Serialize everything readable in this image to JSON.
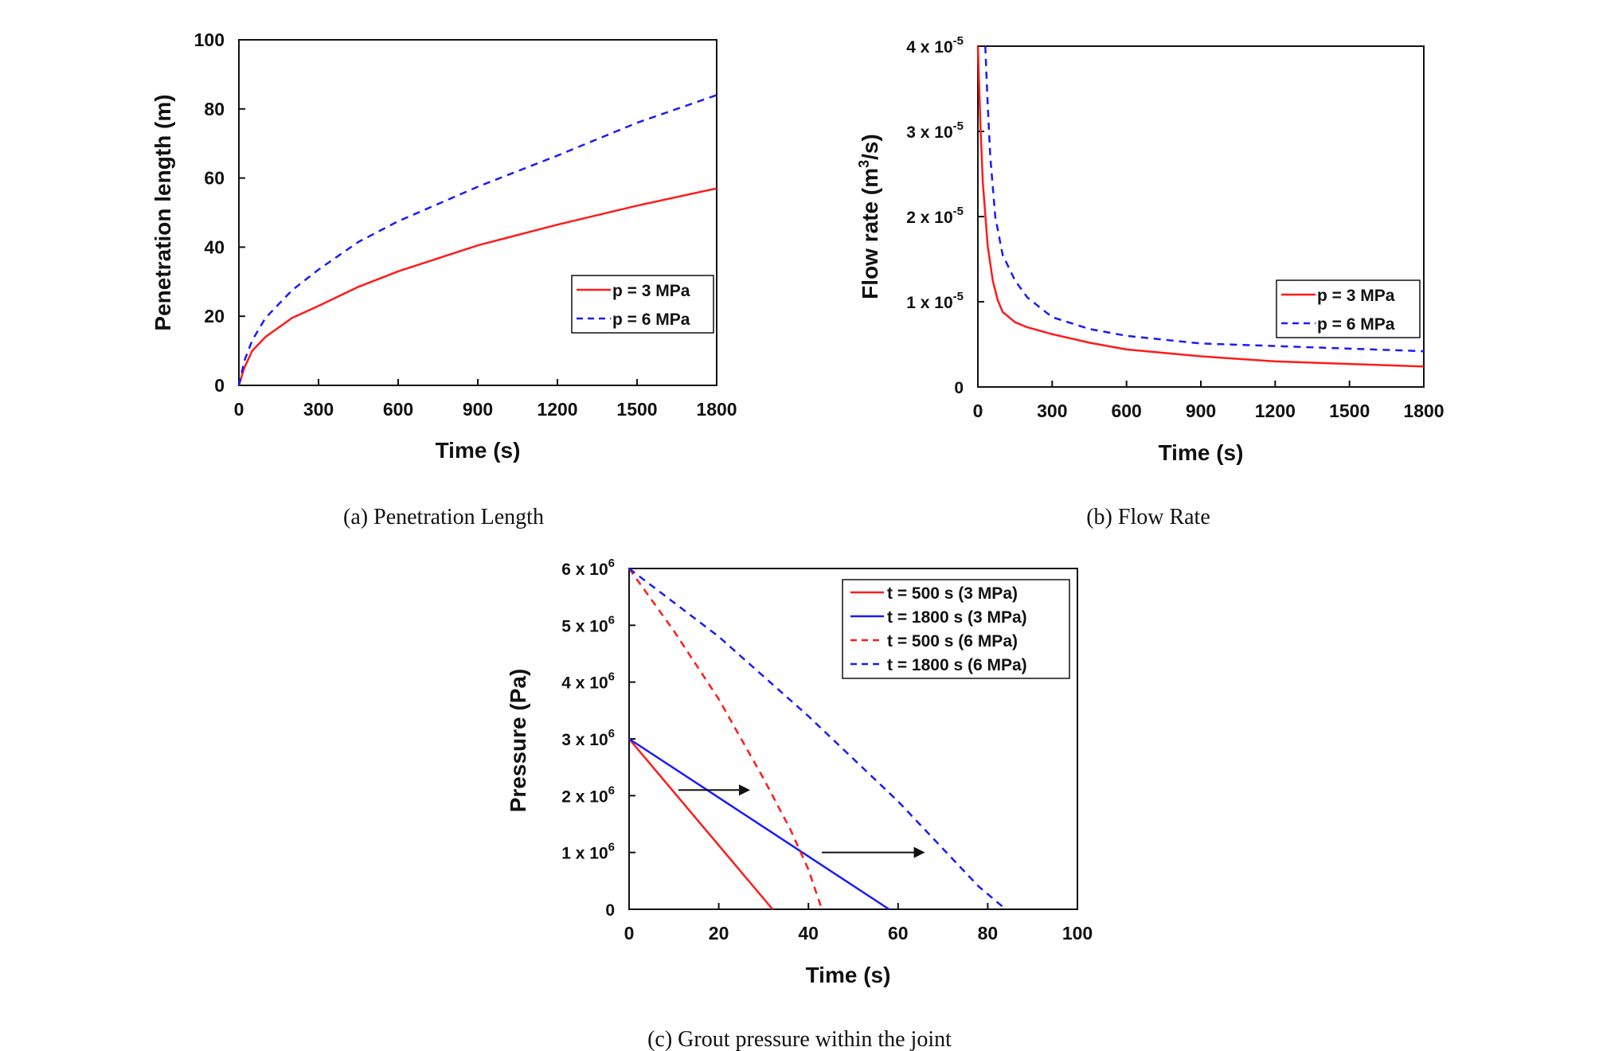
{
  "colors": {
    "red": "#ff1a1a",
    "blue": "#1a1aff",
    "axis": "#111111"
  },
  "chart_data": [
    {
      "id": "a",
      "type": "line",
      "caption": "(a)  Penetration  Length",
      "xlabel": "Time (s)",
      "ylabel": "Penetration length (m)",
      "xlim": [
        0,
        1800
      ],
      "ylim": [
        0,
        100
      ],
      "xticks": [
        0,
        300,
        600,
        900,
        1200,
        1500,
        1800
      ],
      "yticks": [
        0,
        20,
        40,
        60,
        80,
        100
      ],
      "xtick_labels": [
        "0",
        "300",
        "600",
        "900",
        "1200",
        "1500",
        "1800"
      ],
      "ytick_labels": [
        "0",
        "20",
        "40",
        "60",
        "80",
        "100"
      ],
      "legend": [
        "p = 3 MPa",
        "p = 6 MPa"
      ],
      "series": [
        {
          "name": "p = 3 MPa",
          "style": "solid",
          "color": "red",
          "x": [
            0,
            20,
            50,
            100,
            200,
            300,
            450,
            600,
            900,
            1200,
            1500,
            1800
          ],
          "y": [
            0,
            5,
            10,
            14,
            19.5,
            23,
            28.5,
            33,
            40.5,
            46.5,
            52,
            57
          ]
        },
        {
          "name": "p = 6 MPa",
          "style": "dashed",
          "color": "blue",
          "x": [
            0,
            20,
            50,
            100,
            200,
            300,
            450,
            600,
            900,
            1200,
            1500,
            1800
          ],
          "y": [
            0,
            7,
            13,
            19.5,
            27.5,
            33.5,
            41.5,
            47.5,
            57.5,
            66.5,
            76,
            84
          ]
        }
      ]
    },
    {
      "id": "b",
      "type": "line",
      "caption": "(b)  Flow  Rate",
      "xlabel": "Time (s)",
      "ylabel_base": "Flow rate (m",
      "ylabel_sup": "3",
      "ylabel_tail": "/s)",
      "xlim": [
        0,
        1800
      ],
      "ylim": [
        0,
        4e-05
      ],
      "xticks": [
        0,
        300,
        600,
        900,
        1200,
        1500,
        1800
      ],
      "xtick_labels": [
        "0",
        "300",
        "600",
        "900",
        "1200",
        "1500",
        "1800"
      ],
      "yticks": [
        0,
        1e-05,
        2e-05,
        3e-05,
        4e-05
      ],
      "ytick_labels": [
        {
          "base": "0",
          "exp": ""
        },
        {
          "base": "1 x 10",
          "exp": "-5"
        },
        {
          "base": "2 x 10",
          "exp": "-5"
        },
        {
          "base": "3 x 10",
          "exp": "-5"
        },
        {
          "base": "4 x 10",
          "exp": "-5"
        }
      ],
      "legend": [
        "p = 3 MPa",
        "p = 6 MPa"
      ],
      "series": [
        {
          "name": "p = 3 MPa",
          "style": "solid",
          "color": "red",
          "x": [
            0,
            10,
            20,
            40,
            60,
            80,
            100,
            150,
            200,
            300,
            450,
            600,
            900,
            1200,
            1500,
            1800
          ],
          "y": [
            4e-05,
            3.1e-05,
            2.4e-05,
            1.65e-05,
            1.25e-05,
            1.02e-05,
            8.8e-06,
            7.6e-06,
            7e-06,
            6.2e-06,
            5.2e-06,
            4.4e-06,
            3.6e-06,
            3e-06,
            2.7e-06,
            2.4e-06
          ]
        },
        {
          "name": "p = 6 MPa",
          "style": "dashed",
          "color": "blue",
          "x": [
            30,
            40,
            50,
            70,
            100,
            150,
            200,
            300,
            450,
            600,
            900,
            1200,
            1500,
            1800
          ],
          "y": [
            4e-05,
            3.3e-05,
            2.7e-05,
            2e-05,
            1.55e-05,
            1.25e-05,
            1.05e-05,
            8.2e-06,
            6.8e-06,
            6e-06,
            5.1e-06,
            4.8e-06,
            4.5e-06,
            4.2e-06
          ]
        }
      ]
    },
    {
      "id": "c",
      "type": "line",
      "caption": "(c)  Grout  pressure  within  the  joint",
      "xlabel": "Time (s)",
      "ylabel": "Pressure (Pa)",
      "xlim": [
        0,
        100
      ],
      "ylim": [
        0,
        6000000
      ],
      "xticks": [
        0,
        20,
        40,
        60,
        80,
        100
      ],
      "xtick_labels": [
        "0",
        "20",
        "40",
        "60",
        "80",
        "100"
      ],
      "yticks": [
        0,
        1000000,
        2000000,
        3000000,
        4000000,
        5000000,
        6000000
      ],
      "ytick_labels": [
        {
          "base": "0",
          "exp": ""
        },
        {
          "base": "1 x 10",
          "exp": "6"
        },
        {
          "base": "2 x 10",
          "exp": "6"
        },
        {
          "base": "3 x 10",
          "exp": "6"
        },
        {
          "base": "4 x 10",
          "exp": "6"
        },
        {
          "base": "5 x 10",
          "exp": "6"
        },
        {
          "base": "6 x 10",
          "exp": "6"
        }
      ],
      "legend": [
        "t = 500 s (3 MPa)",
        "t = 1800 s (3 MPa)",
        "t = 500 s (6 MPa)",
        "t = 1800 s (6 MPa)"
      ],
      "series": [
        {
          "name": "t = 500 s (3 MPa)",
          "style": "solid",
          "color": "red",
          "x": [
            0,
            32
          ],
          "y": [
            3000000,
            0
          ]
        },
        {
          "name": "t = 1800 s (3 MPa)",
          "style": "solid",
          "color": "blue",
          "x": [
            0,
            58
          ],
          "y": [
            3000000,
            0
          ]
        },
        {
          "name": "t = 500 s (6 MPa)",
          "style": "dashed",
          "color": "red",
          "x": [
            0,
            10,
            20,
            30,
            36,
            40,
            43
          ],
          "y": [
            6000000,
            4900000,
            3700000,
            2300000,
            1400000,
            700000,
            0
          ]
        },
        {
          "name": "t = 1800 s (6 MPa)",
          "style": "dashed",
          "color": "blue",
          "x": [
            0,
            20,
            40,
            60,
            78,
            81,
            84
          ],
          "y": [
            6000000,
            4800000,
            3400000,
            1900000,
            400000,
            200000,
            0
          ]
        }
      ],
      "arrows": [
        {
          "x1": 11,
          "x2": 27,
          "y": 2100000
        },
        {
          "x1": 43,
          "x2": 66,
          "y": 1000000
        }
      ]
    }
  ]
}
